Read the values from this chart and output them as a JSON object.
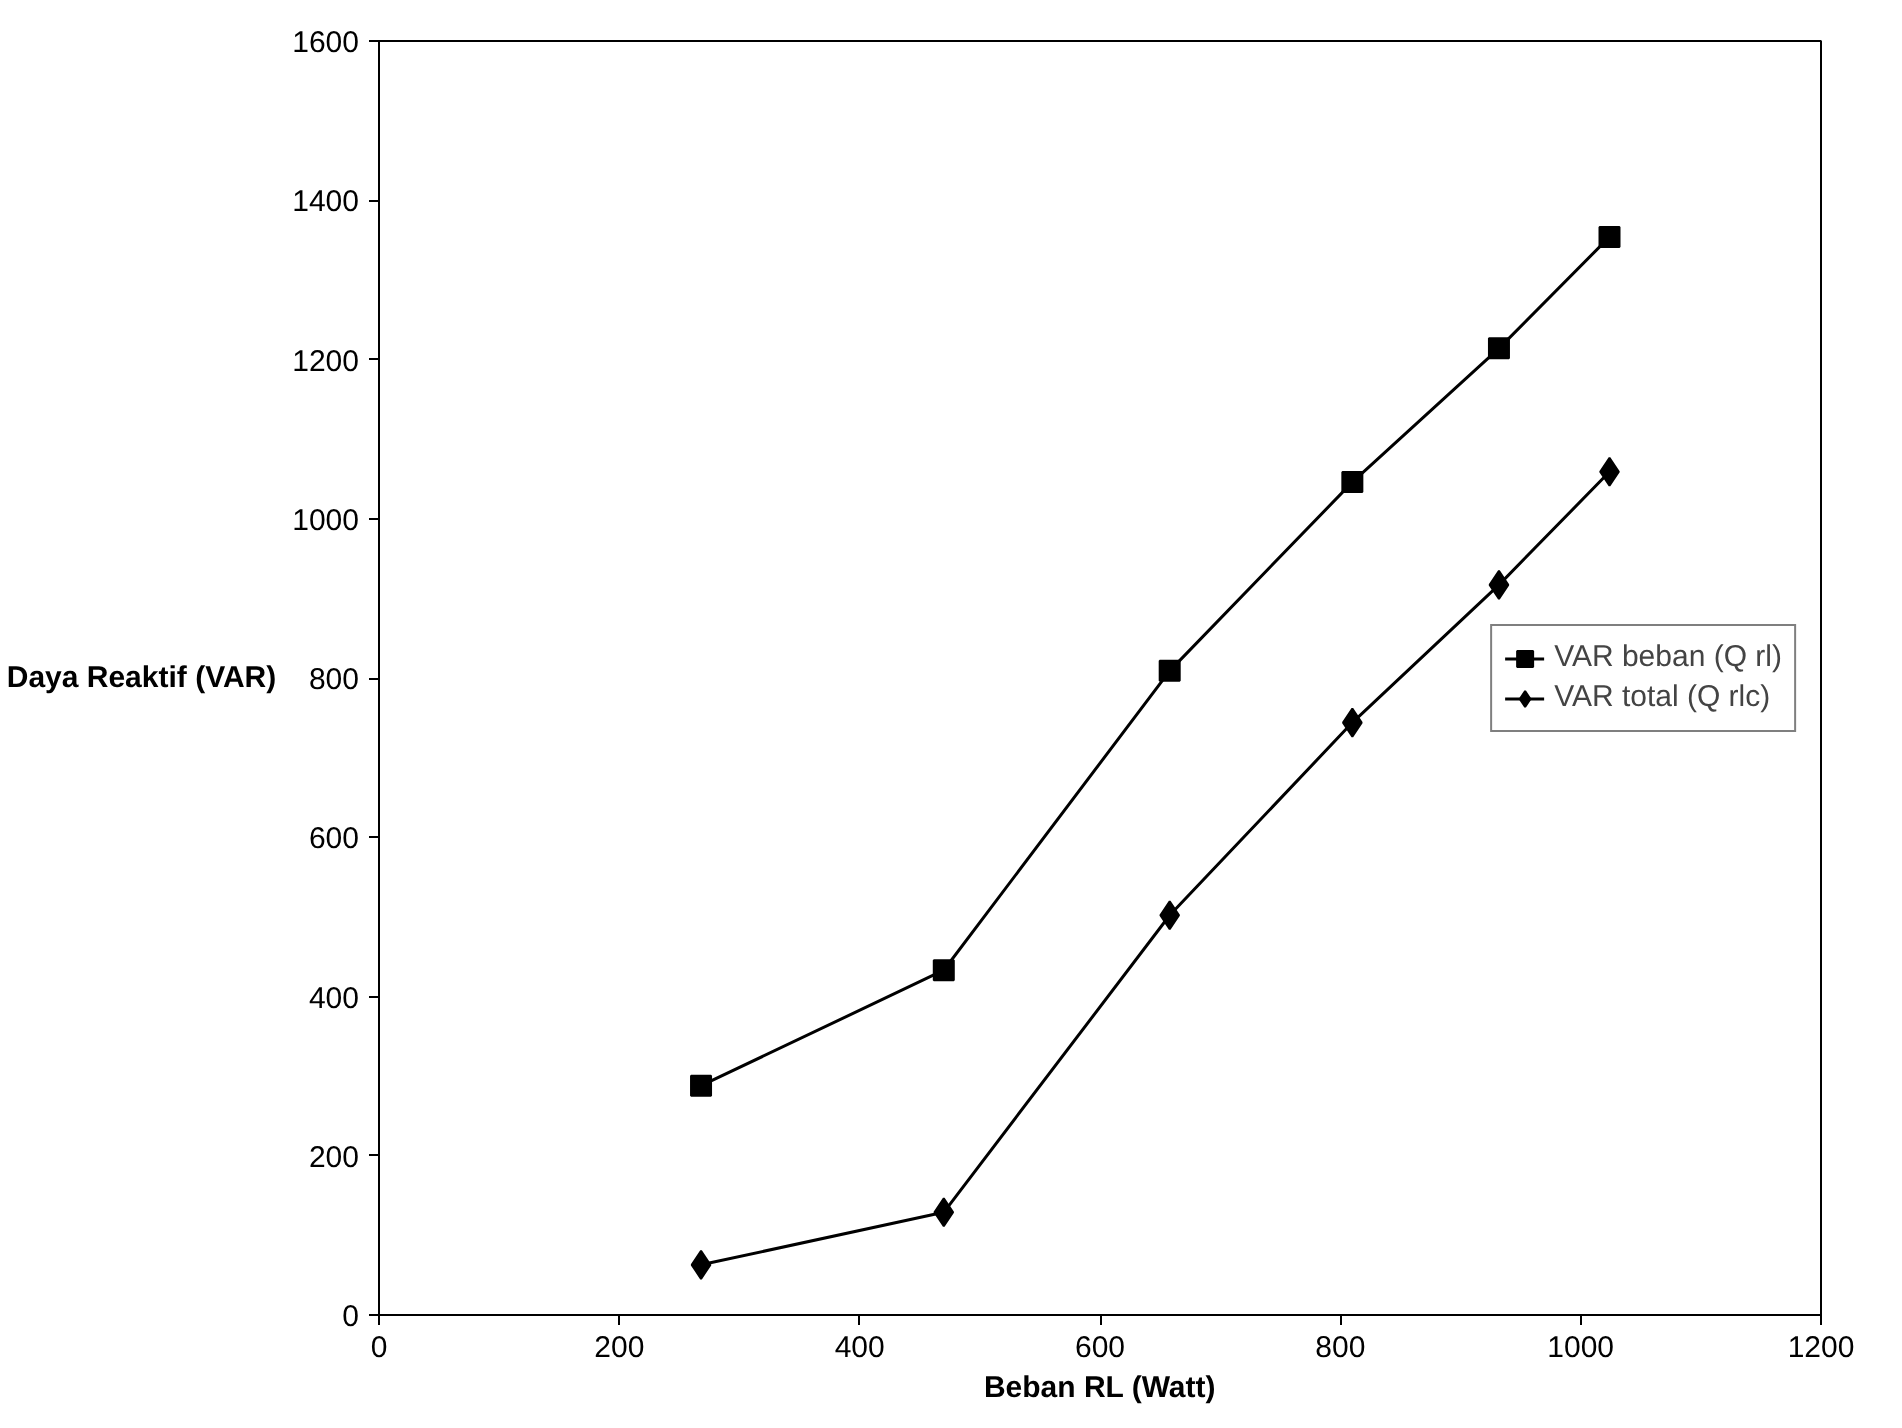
{
  "chart_data": {
    "type": "line",
    "xlabel": "Beban RL (Watt)",
    "ylabel": "Daya Reaktif (VAR)",
    "x": [
      268,
      470,
      658,
      810,
      932,
      1024
    ],
    "series": [
      {
        "name": "VAR beban (Q rl)",
        "color": "#000000",
        "marker": "square",
        "values": [
          288,
          433,
          809,
          1046,
          1214,
          1354
        ]
      },
      {
        "name": "VAR total (Q rlc)",
        "color": "#000000",
        "marker": "diamond",
        "values": [
          63,
          129,
          502,
          744,
          917,
          1059
        ]
      }
    ],
    "xlim": [
      0,
      1200
    ],
    "xticks": [
      0,
      200,
      400,
      600,
      800,
      1000,
      1200
    ],
    "ylim": [
      0,
      1600
    ],
    "yticks": [
      0,
      200,
      400,
      600,
      800,
      1000,
      1200,
      1400,
      1600
    ],
    "grid": false,
    "legend": "right",
    "line_style": "solid"
  }
}
